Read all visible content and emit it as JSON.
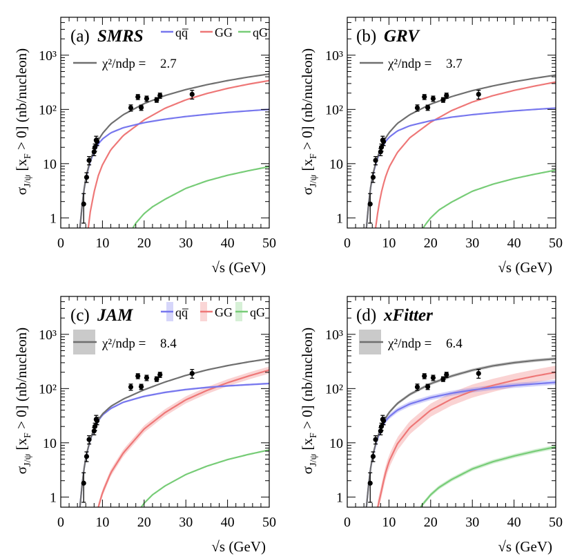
{
  "figure": {
    "ylabel_main": "σ",
    "ylabel_sub": "J/ψ",
    "ylabel_rest": "[x",
    "ylabel_sub2": "F",
    "ylabel_tail": "> 0] (nb/nucleon)",
    "xlabel_root": "√s",
    "xlabel_unit": "(GeV)",
    "chi_label": "χ²/ndp =",
    "legend": {
      "qq": "qq̅",
      "gg": "GG",
      "qg": "qG"
    }
  },
  "chart_data": [
    {
      "type": "line",
      "panel": "(a)",
      "title": "SMRS",
      "chi2": "2.7",
      "xlim": [
        0,
        50
      ],
      "ylim": [
        0.65,
        5000
      ],
      "yscale": "log",
      "xticks": [
        "0",
        "10",
        "20",
        "30",
        "40",
        "50"
      ],
      "yticks": [
        {
          "label": "1",
          "v": 1
        },
        {
          "label": "10",
          "v": 10
        },
        {
          "label": "10²",
          "v": 100
        },
        {
          "label": "10³",
          "v": 1000
        }
      ],
      "has_legend": true,
      "bands": false,
      "points": [
        {
          "x": 5.5,
          "y": 1.8,
          "lo": 0.8,
          "hi": 2.8
        },
        {
          "x": 6.2,
          "y": 5.6,
          "lo": 4.5,
          "hi": 6.8
        },
        {
          "x": 6.8,
          "y": 11.5,
          "lo": 9.5,
          "hi": 13.5
        },
        {
          "x": 8.0,
          "y": 16.5,
          "lo": 14.0,
          "hi": 19.0
        },
        {
          "x": 8.2,
          "y": 20.0,
          "lo": 17.0,
          "hi": 23.0
        },
        {
          "x": 8.5,
          "y": 27.0,
          "lo": 22.0,
          "hi": 32.0
        },
        {
          "x": 8.7,
          "y": 25.5,
          "lo": 21.5,
          "hi": 29.5
        },
        {
          "x": 16.8,
          "y": 107.0,
          "lo": 93.0,
          "hi": 121.0
        },
        {
          "x": 18.5,
          "y": 170.0,
          "lo": 152.0,
          "hi": 188.0
        },
        {
          "x": 19.3,
          "y": 108.0,
          "lo": 96.0,
          "hi": 120.0
        },
        {
          "x": 20.6,
          "y": 158.0,
          "lo": 140.0,
          "hi": 176.0
        },
        {
          "x": 23.0,
          "y": 150.0,
          "lo": 135.0,
          "hi": 165.0
        },
        {
          "x": 23.8,
          "y": 180.0,
          "lo": 160.0,
          "hi": 200.0
        },
        {
          "x": 31.5,
          "y": 190.0,
          "lo": 155.0,
          "hi": 225.0
        }
      ],
      "series": [
        {
          "name": "total",
          "color": "#6f6f6f",
          "x": [
            4.6,
            5,
            5.5,
            6,
            7,
            8,
            9,
            10,
            12,
            15,
            20,
            25,
            30,
            35,
            40,
            45,
            50
          ],
          "values": [
            0.65,
            1.4,
            3.0,
            5.5,
            11.0,
            18.0,
            27.0,
            36.0,
            54.0,
            80.0,
            128.0,
            180.0,
            232.0,
            285.0,
            340.0,
            395.0,
            450.0
          ]
        },
        {
          "name": "qq̅",
          "color": "#7777ee",
          "x": [
            4.6,
            5,
            5.5,
            6,
            7,
            8,
            9,
            10,
            12,
            15,
            20,
            25,
            30,
            35,
            40,
            45,
            50
          ],
          "values": [
            0.65,
            1.4,
            3.0,
            5.3,
            10.5,
            16.5,
            23.0,
            28.5,
            37.0,
            46.0,
            57.0,
            66.0,
            74.0,
            81.0,
            88.0,
            94.0,
            100.0
          ]
        },
        {
          "name": "GG",
          "color": "#ee7777",
          "x": [
            6.6,
            7,
            8,
            9,
            10,
            12,
            15,
            20,
            25,
            30,
            35,
            40,
            45,
            50
          ],
          "values": [
            0.65,
            1.2,
            3.0,
            6.0,
            9.5,
            18.0,
            33.0,
            64.0,
            105.0,
            150.0,
            196.0,
            244.0,
            292.0,
            340.0
          ]
        },
        {
          "name": "qG",
          "color": "#77cc77",
          "x": [
            17.3,
            18,
            20,
            22,
            25,
            30,
            35,
            40,
            45,
            50
          ],
          "values": [
            0.65,
            0.8,
            1.2,
            1.6,
            2.2,
            3.5,
            4.8,
            6.1,
            7.4,
            8.8
          ]
        }
      ]
    },
    {
      "type": "line",
      "panel": "(b)",
      "title": "GRV",
      "chi2": "3.7",
      "xlim": [
        0,
        50
      ],
      "ylim": [
        0.65,
        5000
      ],
      "yscale": "log",
      "xticks": [
        "0",
        "10",
        "20",
        "30",
        "40",
        "50"
      ],
      "yticks": [
        {
          "label": "1",
          "v": 1
        },
        {
          "label": "10",
          "v": 10
        },
        {
          "label": "10²",
          "v": 100
        },
        {
          "label": "10³",
          "v": 1000
        }
      ],
      "has_legend": false,
      "bands": false,
      "points": [
        {
          "x": 5.5,
          "y": 1.8,
          "lo": 0.8,
          "hi": 2.8
        },
        {
          "x": 6.2,
          "y": 5.6,
          "lo": 4.5,
          "hi": 6.8
        },
        {
          "x": 6.8,
          "y": 11.5,
          "lo": 9.5,
          "hi": 13.5
        },
        {
          "x": 8.0,
          "y": 16.5,
          "lo": 14.0,
          "hi": 19.0
        },
        {
          "x": 8.2,
          "y": 20.0,
          "lo": 17.0,
          "hi": 23.0
        },
        {
          "x": 8.5,
          "y": 27.0,
          "lo": 22.0,
          "hi": 32.0
        },
        {
          "x": 8.7,
          "y": 25.5,
          "lo": 21.5,
          "hi": 29.5
        },
        {
          "x": 16.8,
          "y": 107.0,
          "lo": 93.0,
          "hi": 121.0
        },
        {
          "x": 18.5,
          "y": 170.0,
          "lo": 152.0,
          "hi": 188.0
        },
        {
          "x": 19.3,
          "y": 108.0,
          "lo": 96.0,
          "hi": 120.0
        },
        {
          "x": 20.6,
          "y": 158.0,
          "lo": 140.0,
          "hi": 176.0
        },
        {
          "x": 23.0,
          "y": 150.0,
          "lo": 135.0,
          "hi": 165.0
        },
        {
          "x": 23.8,
          "y": 180.0,
          "lo": 160.0,
          "hi": 200.0
        },
        {
          "x": 31.5,
          "y": 190.0,
          "lo": 155.0,
          "hi": 225.0
        }
      ],
      "series": [
        {
          "name": "total",
          "color": "#6f6f6f",
          "x": [
            4.6,
            5,
            5.5,
            6,
            7,
            8,
            9,
            10,
            12,
            15,
            20,
            25,
            30,
            35,
            40,
            45,
            50
          ],
          "values": [
            0.65,
            1.5,
            3.2,
            5.8,
            11.5,
            19.0,
            28.0,
            37.0,
            55.0,
            80.0,
            125.0,
            172.0,
            222.0,
            272.0,
            324.0,
            376.0,
            430.0
          ]
        },
        {
          "name": "qq̅",
          "color": "#7777ee",
          "x": [
            4.6,
            5,
            5.5,
            6,
            7,
            8,
            9,
            10,
            12,
            15,
            20,
            25,
            30,
            35,
            40,
            45,
            50
          ],
          "values": [
            0.65,
            1.5,
            3.2,
            5.6,
            11.0,
            17.5,
            24.5,
            30.5,
            40.0,
            50.0,
            62.0,
            72.0,
            80.0,
            87.0,
            94.0,
            100.0,
            106.0
          ]
        },
        {
          "name": "GG",
          "color": "#ee7777",
          "x": [
            6.8,
            7,
            8,
            9,
            10,
            12,
            15,
            20,
            25,
            30,
            35,
            40,
            45,
            50
          ],
          "values": [
            0.65,
            0.9,
            2.6,
            5.2,
            8.5,
            16.0,
            30.0,
            58.0,
            95.0,
            137.0,
            180.0,
            224.0,
            270.0,
            320.0
          ]
        },
        {
          "name": "qG",
          "color": "#77cc77",
          "x": [
            18.2,
            19,
            20,
            22,
            25,
            30,
            35,
            40,
            45,
            50
          ],
          "values": [
            0.65,
            0.8,
            1.0,
            1.4,
            1.95,
            3.1,
            4.2,
            5.3,
            6.4,
            7.6
          ]
        }
      ]
    },
    {
      "type": "line",
      "panel": "(c)",
      "title": "JAM",
      "chi2": "8.4",
      "xlim": [
        0,
        50
      ],
      "ylim": [
        0.65,
        5000
      ],
      "yscale": "log",
      "xticks": [
        "0",
        "10",
        "20",
        "30",
        "40",
        "50"
      ],
      "yticks": [
        {
          "label": "1",
          "v": 1
        },
        {
          "label": "10",
          "v": 10
        },
        {
          "label": "10²",
          "v": 100
        },
        {
          "label": "10³",
          "v": 1000
        }
      ],
      "has_legend": true,
      "bands": true,
      "points": [
        {
          "x": 5.5,
          "y": 1.8,
          "lo": 0.8,
          "hi": 2.8
        },
        {
          "x": 6.2,
          "y": 5.6,
          "lo": 4.5,
          "hi": 6.8
        },
        {
          "x": 6.8,
          "y": 11.5,
          "lo": 9.5,
          "hi": 13.5
        },
        {
          "x": 8.0,
          "y": 16.5,
          "lo": 14.0,
          "hi": 19.0
        },
        {
          "x": 8.2,
          "y": 20.0,
          "lo": 17.0,
          "hi": 23.0
        },
        {
          "x": 8.5,
          "y": 27.0,
          "lo": 22.0,
          "hi": 32.0
        },
        {
          "x": 8.7,
          "y": 25.5,
          "lo": 21.5,
          "hi": 29.5
        },
        {
          "x": 16.8,
          "y": 107.0,
          "lo": 93.0,
          "hi": 121.0
        },
        {
          "x": 18.5,
          "y": 170.0,
          "lo": 152.0,
          "hi": 188.0
        },
        {
          "x": 19.3,
          "y": 108.0,
          "lo": 96.0,
          "hi": 120.0
        },
        {
          "x": 20.6,
          "y": 158.0,
          "lo": 140.0,
          "hi": 176.0
        },
        {
          "x": 23.0,
          "y": 150.0,
          "lo": 135.0,
          "hi": 165.0
        },
        {
          "x": 23.8,
          "y": 180.0,
          "lo": 160.0,
          "hi": 200.0
        },
        {
          "x": 31.5,
          "y": 190.0,
          "lo": 155.0,
          "hi": 225.0
        }
      ],
      "series": [
        {
          "name": "total",
          "color": "#6f6f6f",
          "bw": 0.03,
          "x": [
            4.6,
            5,
            5.5,
            6,
            7,
            8,
            9,
            10,
            12,
            15,
            20,
            25,
            30,
            35,
            40,
            45,
            50
          ],
          "values": [
            0.65,
            1.4,
            3.0,
            5.4,
            11.0,
            18.5,
            26.5,
            34.0,
            47.0,
            64.0,
            95.0,
            132.0,
            175.0,
            220.0,
            265.0,
            310.0,
            355.0
          ]
        },
        {
          "name": "qq̅",
          "color": "#7777ee",
          "bw": 0.04,
          "x": [
            4.6,
            5,
            5.5,
            6,
            7,
            8,
            9,
            10,
            12,
            15,
            20,
            25,
            30,
            35,
            40,
            45,
            50
          ],
          "values": [
            0.65,
            1.4,
            3.0,
            5.3,
            10.8,
            18.0,
            25.5,
            32.5,
            43.0,
            56.0,
            72.0,
            85.0,
            96.0,
            105.0,
            112.0,
            118.0,
            124.0
          ]
        },
        {
          "name": "GG",
          "color": "#ee7777",
          "bw": 0.16,
          "x": [
            9.0,
            10,
            12,
            15,
            20,
            25,
            30,
            35,
            40,
            45,
            50
          ],
          "values": [
            0.65,
            1.2,
            2.8,
            6.5,
            18.0,
            36.0,
            62.0,
            92.0,
            128.0,
            170.0,
            220.0
          ]
        },
        {
          "name": "qG",
          "color": "#77cc77",
          "bw": 0.03,
          "x": [
            19.3,
            20,
            22,
            25,
            30,
            35,
            40,
            45,
            50
          ],
          "values": [
            0.65,
            0.77,
            1.1,
            1.6,
            2.6,
            3.7,
            4.9,
            6.1,
            7.4
          ]
        }
      ]
    },
    {
      "type": "line",
      "panel": "(d)",
      "title": "xFitter",
      "chi2": "6.4",
      "xlim": [
        0,
        50
      ],
      "ylim": [
        0.65,
        5000
      ],
      "yscale": "log",
      "xticks": [
        "0",
        "10",
        "20",
        "30",
        "40",
        "50"
      ],
      "yticks": [
        {
          "label": "1",
          "v": 1
        },
        {
          "label": "10",
          "v": 10
        },
        {
          "label": "10²",
          "v": 100
        },
        {
          "label": "10³",
          "v": 1000
        }
      ],
      "has_legend": false,
      "bands": true,
      "points": [
        {
          "x": 5.5,
          "y": 1.8,
          "lo": 0.8,
          "hi": 2.8
        },
        {
          "x": 6.2,
          "y": 5.6,
          "lo": 4.5,
          "hi": 6.8
        },
        {
          "x": 6.8,
          "y": 11.5,
          "lo": 9.5,
          "hi": 13.5
        },
        {
          "x": 8.0,
          "y": 16.5,
          "lo": 14.0,
          "hi": 19.0
        },
        {
          "x": 8.2,
          "y": 20.0,
          "lo": 17.0,
          "hi": 23.0
        },
        {
          "x": 8.5,
          "y": 27.0,
          "lo": 22.0,
          "hi": 32.0
        },
        {
          "x": 8.7,
          "y": 25.5,
          "lo": 21.5,
          "hi": 29.5
        },
        {
          "x": 16.8,
          "y": 107.0,
          "lo": 93.0,
          "hi": 121.0
        },
        {
          "x": 18.5,
          "y": 170.0,
          "lo": 152.0,
          "hi": 188.0
        },
        {
          "x": 19.3,
          "y": 108.0,
          "lo": 96.0,
          "hi": 120.0
        },
        {
          "x": 20.6,
          "y": 158.0,
          "lo": 140.0,
          "hi": 176.0
        },
        {
          "x": 23.0,
          "y": 150.0,
          "lo": 135.0,
          "hi": 165.0
        },
        {
          "x": 23.8,
          "y": 180.0,
          "lo": 160.0,
          "hi": 200.0
        },
        {
          "x": 31.5,
          "y": 190.0,
          "lo": 155.0,
          "hi": 225.0
        }
      ],
      "series": [
        {
          "name": "total",
          "color": "#6f6f6f",
          "bw": 0.07,
          "x": [
            4.6,
            5,
            5.5,
            6,
            7,
            8,
            9,
            10,
            12,
            15,
            20,
            25,
            30,
            35,
            40,
            45,
            50
          ],
          "values": [
            0.65,
            1.4,
            3.0,
            5.4,
            11.0,
            18.5,
            27.0,
            36.0,
            53.0,
            78.0,
            123.0,
            170.0,
            218.0,
            263.0,
            300.0,
            330.0,
            355.0
          ]
        },
        {
          "name": "qq̅",
          "color": "#7777ee",
          "bw": 0.11,
          "x": [
            4.6,
            5,
            5.5,
            6,
            7,
            8,
            9,
            10,
            12,
            15,
            20,
            25,
            30,
            35,
            40,
            45,
            50
          ],
          "values": [
            0.65,
            1.4,
            3.0,
            5.3,
            10.5,
            17.0,
            24.5,
            30.0,
            40.0,
            52.0,
            68.0,
            82.0,
            94.0,
            105.0,
            114.0,
            122.0,
            130.0
          ]
        },
        {
          "name": "GG",
          "color": "#ee7777",
          "bw": 0.32,
          "x": [
            7.3,
            8,
            9,
            10,
            12,
            15,
            20,
            25,
            30,
            35,
            40,
            45,
            50
          ],
          "values": [
            0.65,
            1.1,
            2.5,
            4.5,
            9.5,
            19.0,
            40.0,
            64.0,
            90.0,
            115.0,
            142.0,
            170.0,
            200.0
          ]
        },
        {
          "name": "qG",
          "color": "#77cc77",
          "bw": 0.09,
          "x": [
            17.6,
            18,
            20,
            22,
            25,
            30,
            35,
            40,
            45,
            50
          ],
          "values": [
            0.65,
            0.72,
            1.1,
            1.5,
            2.1,
            3.3,
            4.5,
            5.7,
            7.0,
            8.4
          ]
        }
      ]
    }
  ]
}
